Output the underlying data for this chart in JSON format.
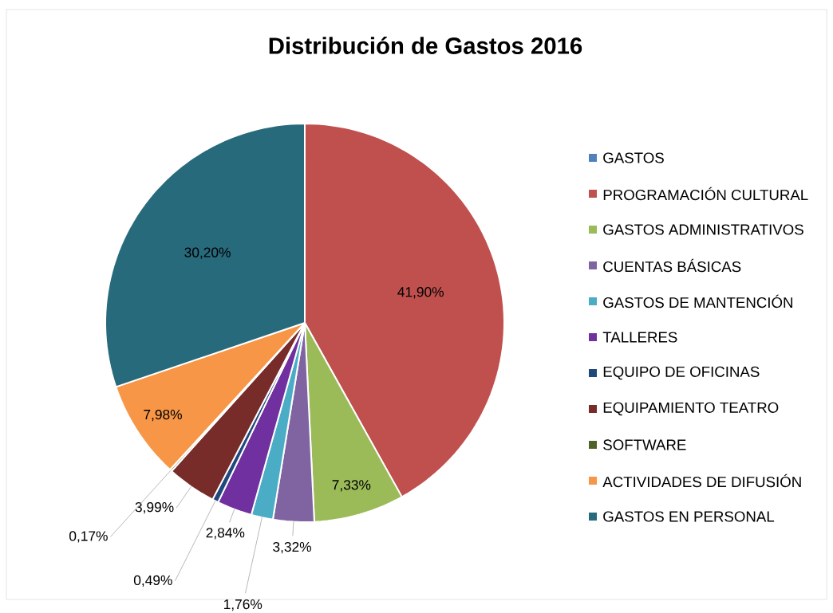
{
  "chart_data": {
    "type": "pie",
    "title": "Distribución de Gastos 2016",
    "categories": [
      "GASTOS",
      "PROGRAMACIÓN CULTURAL",
      "GASTOS ADMINISTRATIVOS",
      "CUENTAS BÁSICAS",
      "GASTOS DE MANTENCIÓN",
      "TALLERES",
      "EQUIPO DE OFICINAS",
      "EQUIPAMIENTO TEATRO",
      "SOFTWARE",
      "ACTIVIDADES DE DIFUSIÓN",
      "GASTOS EN PERSONAL"
    ],
    "values": [
      0,
      41.9,
      7.33,
      3.32,
      1.76,
      2.84,
      0.49,
      3.99,
      0.17,
      7.98,
      30.2
    ],
    "value_labels": [
      null,
      "41,90%",
      "7,33%",
      "3,32%",
      "1,76%",
      "2,84%",
      "0,49%",
      "3,99%",
      "0,17%",
      "7,98%",
      "30,20%"
    ],
    "colors": [
      "#4f81bd",
      "#c0504d",
      "#9bbb59",
      "#8064a2",
      "#4bacc6",
      "#7030a0",
      "#1f497d",
      "#772c2a",
      "#4f6228",
      "#f79646",
      "#276a7c"
    ],
    "legend": "right"
  }
}
